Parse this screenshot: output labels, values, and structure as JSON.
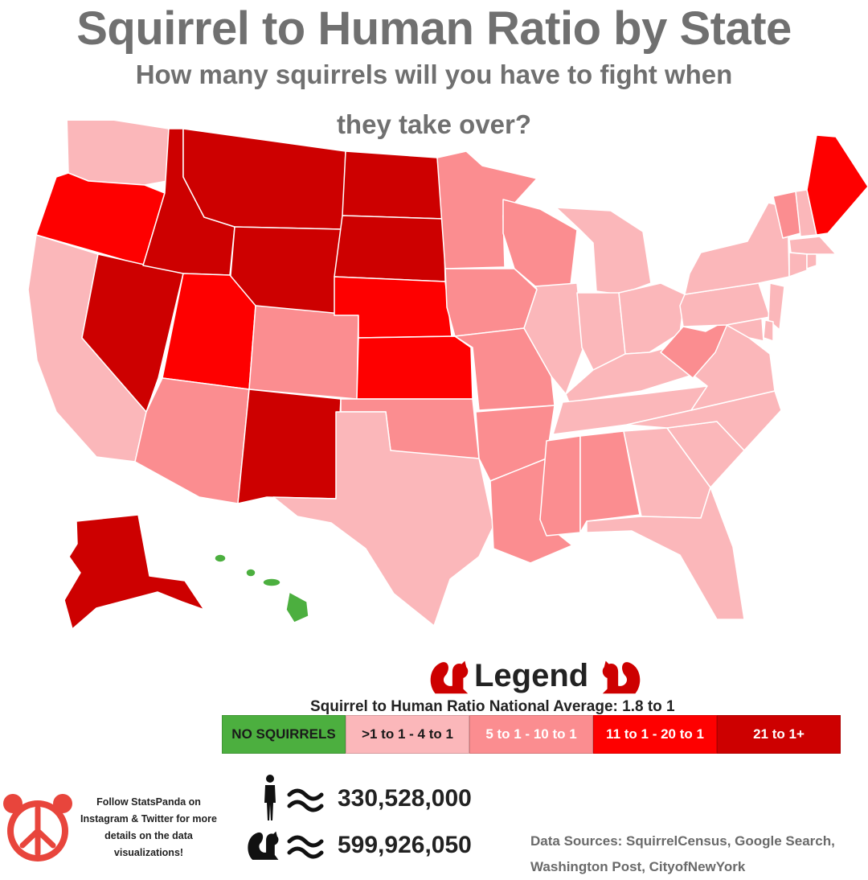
{
  "title": "Squirrel to Human Ratio by State",
  "subtitle": "How many squirrels will you have to fight when they take over?",
  "colors": {
    "no_squirrels": "#4caf3f",
    "bin1": "#fbb7ba",
    "bin2": "#fb8d90",
    "bin3": "#fe0000",
    "bin4": "#cd0000",
    "border": "#ffffff"
  },
  "legend": {
    "title": "Legend",
    "national_average": "Squirrel to Human Ratio National Average: 1.8 to 1",
    "bins": [
      {
        "label": "NO SQUIRRELS",
        "color": "#4caf3f",
        "text_color": "#1a1a1a"
      },
      {
        "label": ">1 to 1 - 4 to 1",
        "color": "#fbb7ba",
        "text_color": "#1a1a1a"
      },
      {
        "label": "5 to 1 - 10 to 1",
        "color": "#fb8d90",
        "text_color": "#ffffff"
      },
      {
        "label": "11 to 1 - 20 to 1",
        "color": "#fe0000",
        "text_color": "#ffffff"
      },
      {
        "label": "21 to 1+",
        "color": "#cd0000",
        "text_color": "#ffffff"
      }
    ]
  },
  "states": {
    "WA": 1,
    "OR": 3,
    "CA": 1,
    "NV": 4,
    "ID": 4,
    "MT": 4,
    "WY": 4,
    "UT": 3,
    "AZ": 2,
    "CO": 2,
    "NM": 4,
    "ND": 4,
    "SD": 4,
    "NE": 3,
    "KS": 3,
    "OK": 2,
    "TX": 1,
    "MN": 2,
    "IA": 2,
    "MO": 2,
    "AR": 2,
    "LA": 2,
    "WI": 2,
    "IL": 1,
    "MI": 1,
    "IN": 1,
    "OH": 1,
    "KY": 1,
    "TN": 1,
    "MS": 2,
    "AL": 2,
    "GA": 1,
    "FL": 1,
    "SC": 1,
    "NC": 1,
    "VA": 1,
    "WV": 2,
    "PA": 1,
    "NY": 1,
    "VT": 2,
    "NH": 1,
    "ME": 3,
    "MA": 1,
    "CT": 1,
    "RI": 1,
    "NJ": 1,
    "DE": 1,
    "MD": 1,
    "AK": 4,
    "HI": 0
  },
  "stats": {
    "humans_icon": "person-icon",
    "humans": "330,528,000",
    "squirrels_icon": "squirrel-icon",
    "squirrels": "599,926,050"
  },
  "follow": "Follow StatsPanda on Instagram & Twitter for more details on the data visualizations!",
  "sources": "Data Sources: SquirrelCensus, Google Search, Washington Post, CityofNewYork"
}
